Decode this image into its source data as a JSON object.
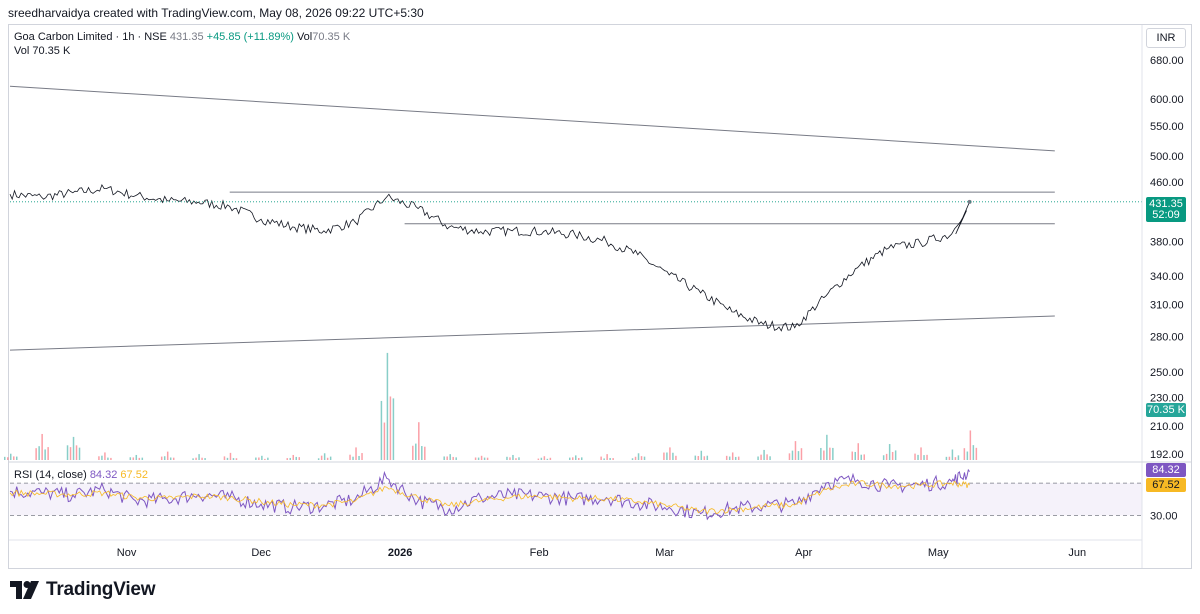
{
  "header": {
    "credit": "sreedharvaidya created with TradingView.com, May 08, 2026 09:22 UTC+5:30"
  },
  "legend": {
    "symbol": "Goa Carbon Limited · 1h · NSE",
    "last": "431.35",
    "change": "+45.85 (+11.89%)",
    "vol_label": "Vol",
    "vol_value": "70.35 K",
    "vol2_label": "Vol",
    "vol2_value": "70.35 K"
  },
  "rsi_legend": {
    "name": "RSI (14, close)",
    "rsi": "84.32",
    "ma": "67.52"
  },
  "currency": "INR",
  "price_badge": {
    "price": "431.35",
    "countdown": "52:09"
  },
  "volume_badge": "70.35 K",
  "rsi_badges": {
    "rsi": "84.32",
    "ma": "67.52"
  },
  "brand": {
    "name": "TradingView"
  },
  "colors": {
    "up": "#089981",
    "down": "#f23645",
    "rsi": "#7e57c2",
    "rsi_ma": "#f7b924",
    "badge_price": "#089981",
    "badge_rsi": "#7e57c2",
    "badge_ma": "#f7b924"
  },
  "chart_data": [
    {
      "type": "line",
      "title": "Goa Carbon Limited · 1h · NSE",
      "y_ticks": [
        680,
        600,
        550,
        500,
        460,
        380,
        340,
        310,
        280,
        250,
        230,
        210,
        192
      ],
      "x_ticks": [
        "Nov",
        "Dec",
        "2026",
        "Feb",
        "Mar",
        "Apr",
        "May",
        "Jun"
      ],
      "log_scale": true,
      "x": [
        "2025-10-06",
        "2025-10-13",
        "2025-10-20",
        "2025-10-27",
        "2025-11-03",
        "2025-11-10",
        "2025-11-17",
        "2025-11-24",
        "2025-12-01",
        "2025-12-08",
        "2025-12-15",
        "2025-12-22",
        "2025-12-29",
        "2026-01-05",
        "2026-01-12",
        "2026-01-19",
        "2026-01-26",
        "2026-02-02",
        "2026-02-09",
        "2026-02-16",
        "2026-02-23",
        "2026-03-02",
        "2026-03-09",
        "2026-03-16",
        "2026-03-23",
        "2026-03-30",
        "2026-04-06",
        "2026-04-13",
        "2026-04-20",
        "2026-04-27",
        "2026-05-04",
        "2026-05-08"
      ],
      "series": [
        {
          "values": [
            442,
            438,
            444,
            450,
            440,
            433,
            431,
            425,
            408,
            398,
            393,
            404,
            438,
            422,
            398,
            392,
            393,
            392,
            388,
            380,
            364,
            341,
            322,
            303,
            291,
            288,
            319,
            349,
            372,
            378,
            389,
            431.35
          ]
        }
      ],
      "drawn_lines": [
        {
          "from": [
            "2025-10-06",
            625
          ],
          "to": [
            "2026-05-27",
            508
          ]
        },
        {
          "from": [
            "2025-10-06",
            268
          ],
          "to": [
            "2026-05-27",
            299
          ]
        },
        {
          "level": 445,
          "from": "2025-11-24",
          "to": "2026-05-27"
        },
        {
          "level": 402,
          "from": "2026-01-02",
          "to": "2026-05-27"
        }
      ]
    },
    {
      "type": "bar",
      "title": "Vol",
      "values_k": [
        15,
        62,
        55,
        18,
        12,
        20,
        14,
        17,
        10,
        12,
        16,
        30,
        255,
        90,
        14,
        10,
        12,
        9,
        11,
        14,
        16,
        30,
        22,
        18,
        24,
        45,
        60,
        40,
        38,
        30,
        25,
        70.35
      ]
    },
    {
      "type": "line",
      "title": "RSI (14, close)",
      "y_ticks": [
        30
      ],
      "series": [
        {
          "name": "RSI",
          "values": [
            60,
            58,
            55,
            62,
            48,
            50,
            56,
            52,
            44,
            40,
            42,
            50,
            76,
            48,
            38,
            52,
            55,
            54,
            50,
            52,
            45,
            40,
            32,
            38,
            42,
            44,
            70,
            74,
            66,
            68,
            72,
            84.32
          ]
        },
        {
          "name": "MA",
          "values": [
            58,
            57,
            56,
            58,
            52,
            51,
            54,
            52,
            47,
            43,
            43,
            48,
            65,
            52,
            42,
            48,
            53,
            54,
            51,
            51,
            47,
            42,
            35,
            37,
            41,
            43,
            62,
            70,
            67,
            67,
            70,
            67.52
          ]
        }
      ]
    }
  ]
}
